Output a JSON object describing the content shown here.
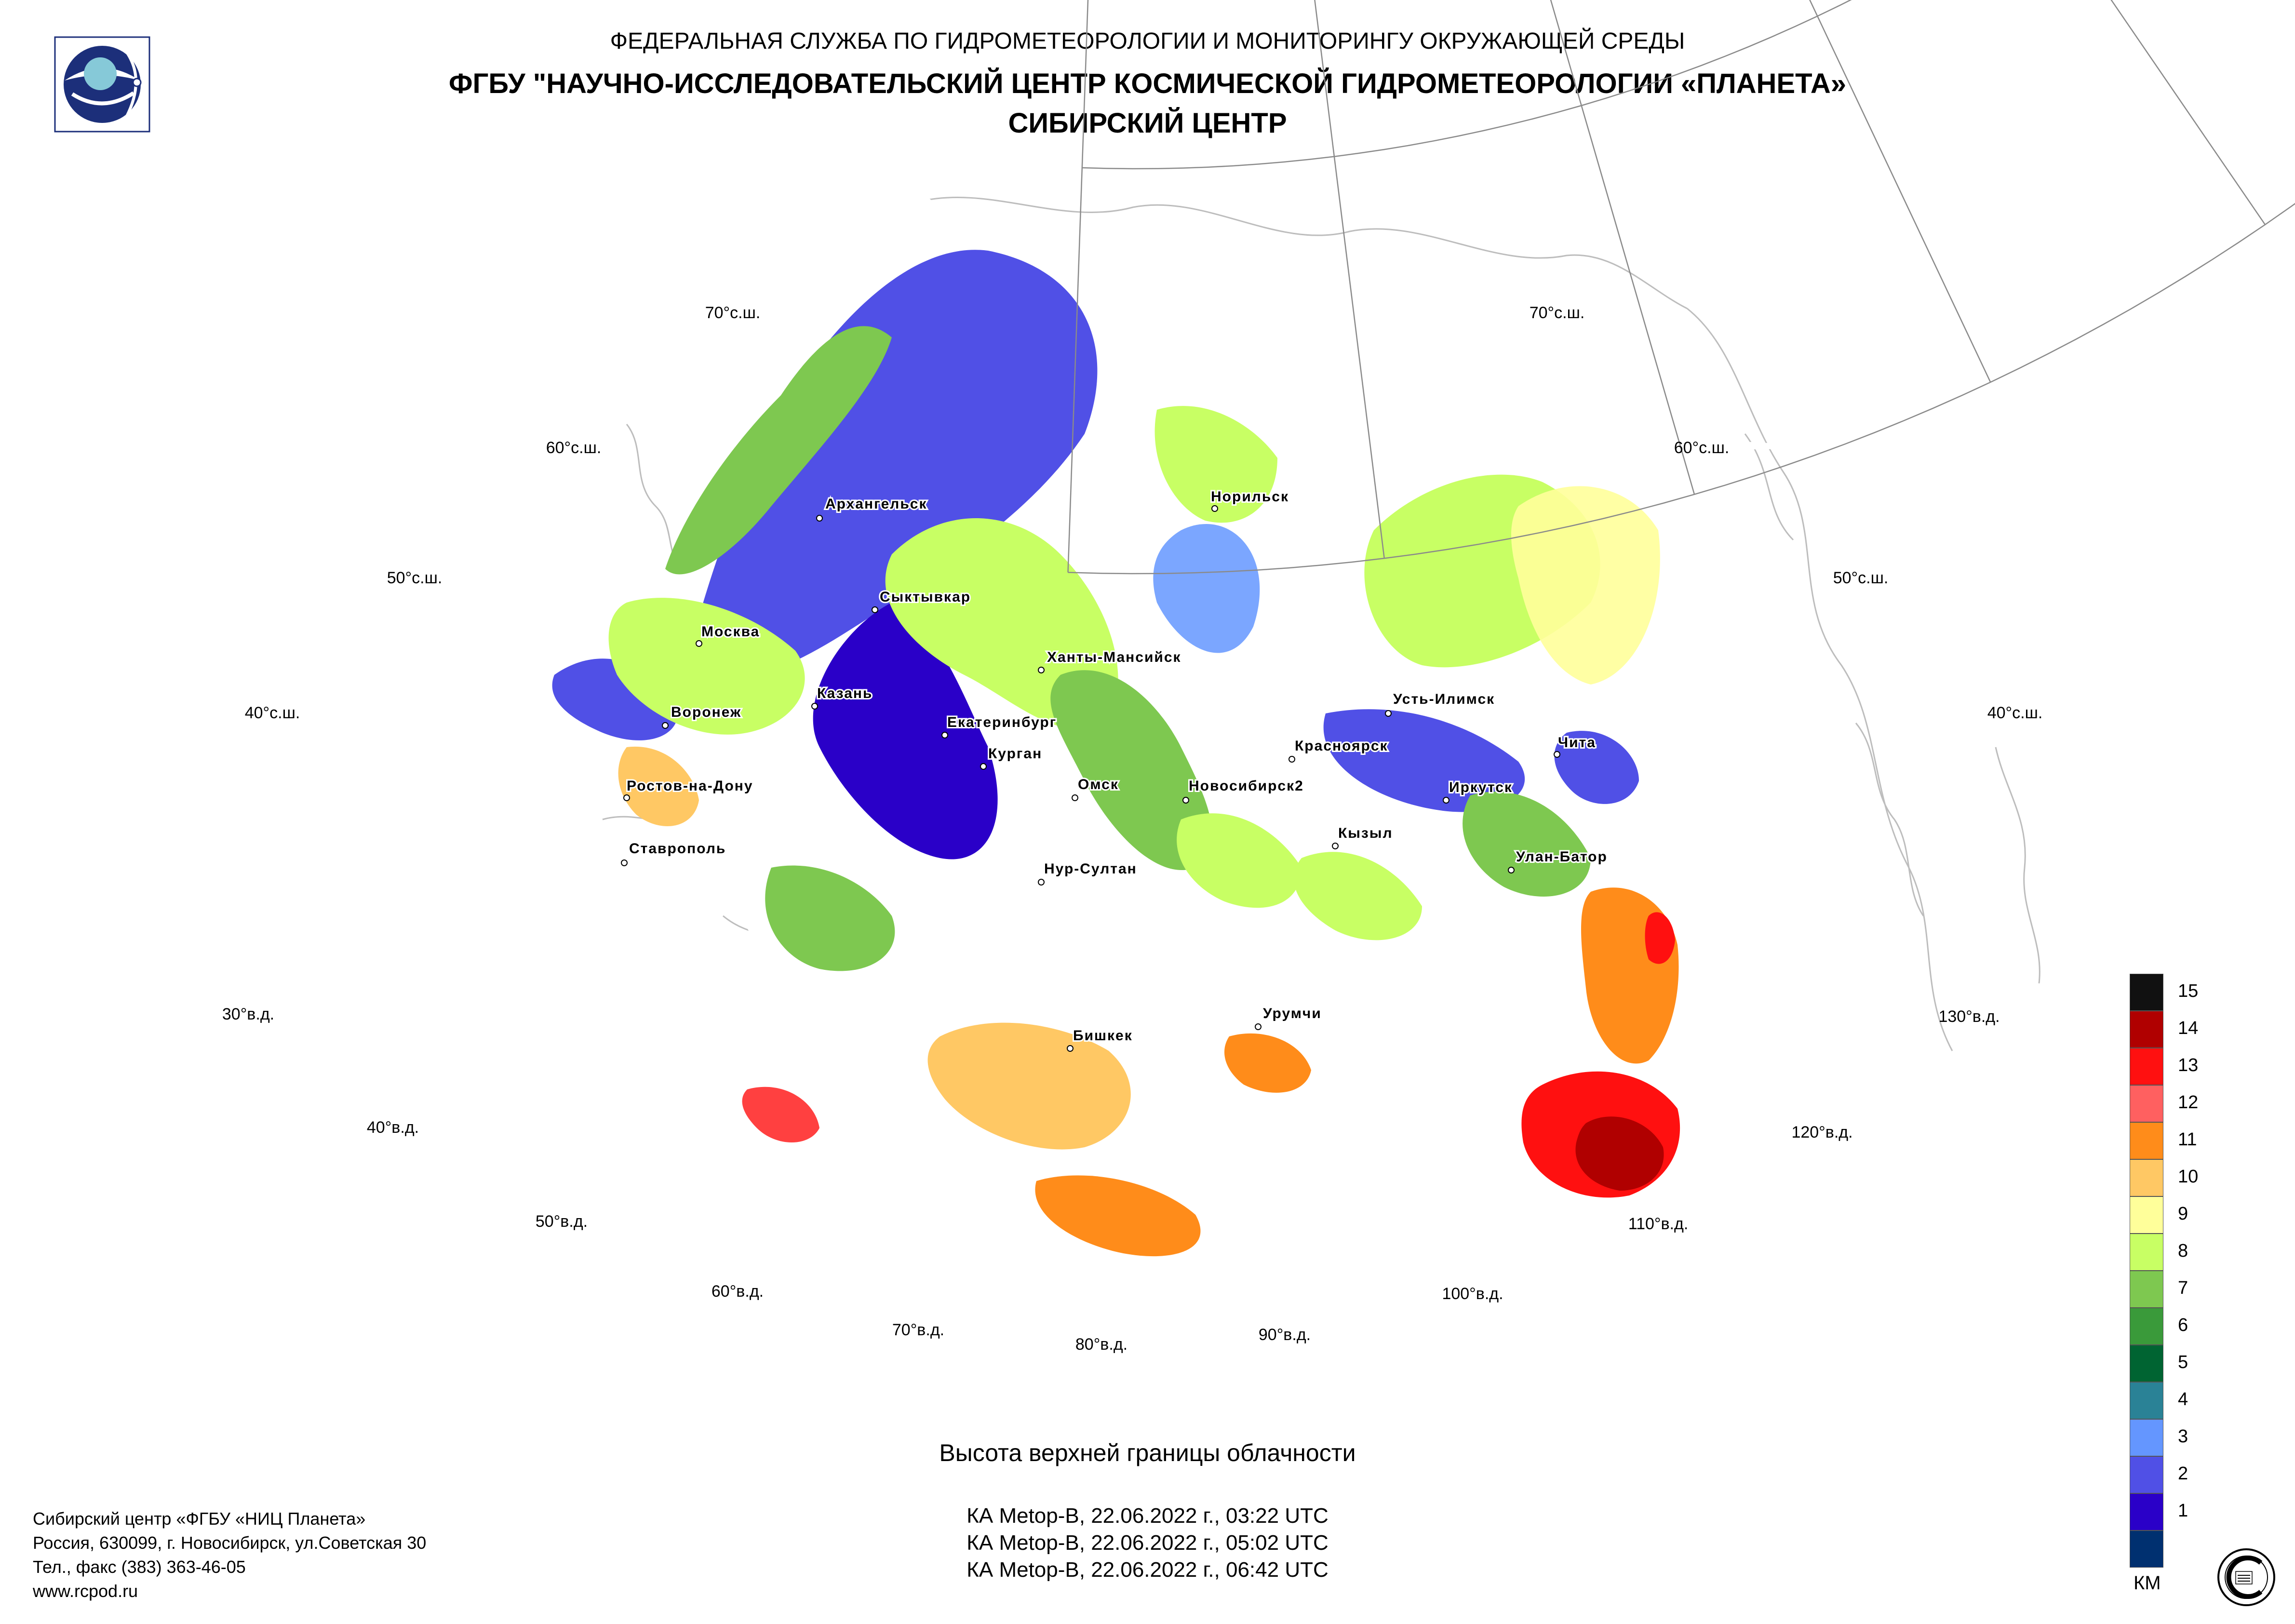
{
  "header": {
    "agency": "ФЕДЕРАЛЬНАЯ СЛУЖБА ПО ГИДРОМЕТЕОРОЛОГИИ И МОНИТОРИНГУ ОКРУЖАЮЩЕЙ СРЕДЫ",
    "institute": "ФГБУ \"НАУЧНО-ИССЛЕДОВАТЕЛЬСКИЙ ЦЕНТР КОСМИЧЕСКОЙ ГИДРОМЕТЕОРОЛОГИИ «ПЛАНЕТА»",
    "center": "СИБИРСКИЙ ЦЕНТР"
  },
  "graticule": {
    "lat_left": [
      "70°с.ш.",
      "60°с.ш.",
      "50°с.ш.",
      "40°с.ш."
    ],
    "lat_right": [
      "70°с.ш.",
      "60°с.ш.",
      "50°с.ш.",
      "40°с.ш."
    ],
    "lon": [
      "30°в.д.",
      "40°в.д.",
      "50°в.д.",
      "60°в.д.",
      "70°в.д.",
      "80°в.д.",
      "90°в.д.",
      "100°в.д.",
      "110°в.д.",
      "120°в.д.",
      "130°в.д."
    ]
  },
  "cities": [
    "Архангельск",
    "Норильск",
    "Сыктывкар",
    "Москва",
    "Ханты-Мансийск",
    "Усть-Илимск",
    "Воронеж",
    "Казань",
    "Екатеринбург",
    "Курган",
    "Красноярск",
    "Чита",
    "Ростов-на-Дону",
    "Омск",
    "Новосибирск2",
    "Иркутск",
    "Ставрополь",
    "Кызыл",
    "Нур-Султан",
    "Улан-Батор",
    "Урумчи",
    "Бишкек"
  ],
  "legend": {
    "unit": "КМ",
    "levels": [
      {
        "label": "15",
        "color": "#111111"
      },
      {
        "label": "14",
        "color": "#b00000"
      },
      {
        "label": "13",
        "color": "#ff1010"
      },
      {
        "label": "12",
        "color": "#ff6060"
      },
      {
        "label": "11",
        "color": "#ff8c1a"
      },
      {
        "label": "10",
        "color": "#ffc864"
      },
      {
        "label": "9",
        "color": "#ffff9a"
      },
      {
        "label": "8",
        "color": "#c8ff64"
      },
      {
        "label": "7",
        "color": "#7ec850"
      },
      {
        "label": "6",
        "color": "#3a9a3a"
      },
      {
        "label": "5",
        "color": "#006432"
      },
      {
        "label": "4",
        "color": "#2a8296"
      },
      {
        "label": "3",
        "color": "#6496ff"
      },
      {
        "label": "2",
        "color": "#5050e6"
      },
      {
        "label": "1",
        "color": "#2a00c8"
      },
      {
        "label": "",
        "color": "#003070"
      }
    ]
  },
  "product": {
    "title": "Высота верхней границы облачности",
    "passes": [
      "КА Metop-B, 22.06.2022 г., 03:22 UTC",
      "КА Metop-B, 22.06.2022 г., 05:02 UTC",
      "КА Metop-B, 22.06.2022 г., 06:42 UTC"
    ]
  },
  "footer": {
    "org": "Сибирский центр «ФГБУ «НИЦ Планета»",
    "address": "Россия, 630099, г. Новосибирск, ул.Советская 30",
    "phone": "Тел., факс (383) 363-46-05",
    "site": "www.rcpod.ru"
  }
}
